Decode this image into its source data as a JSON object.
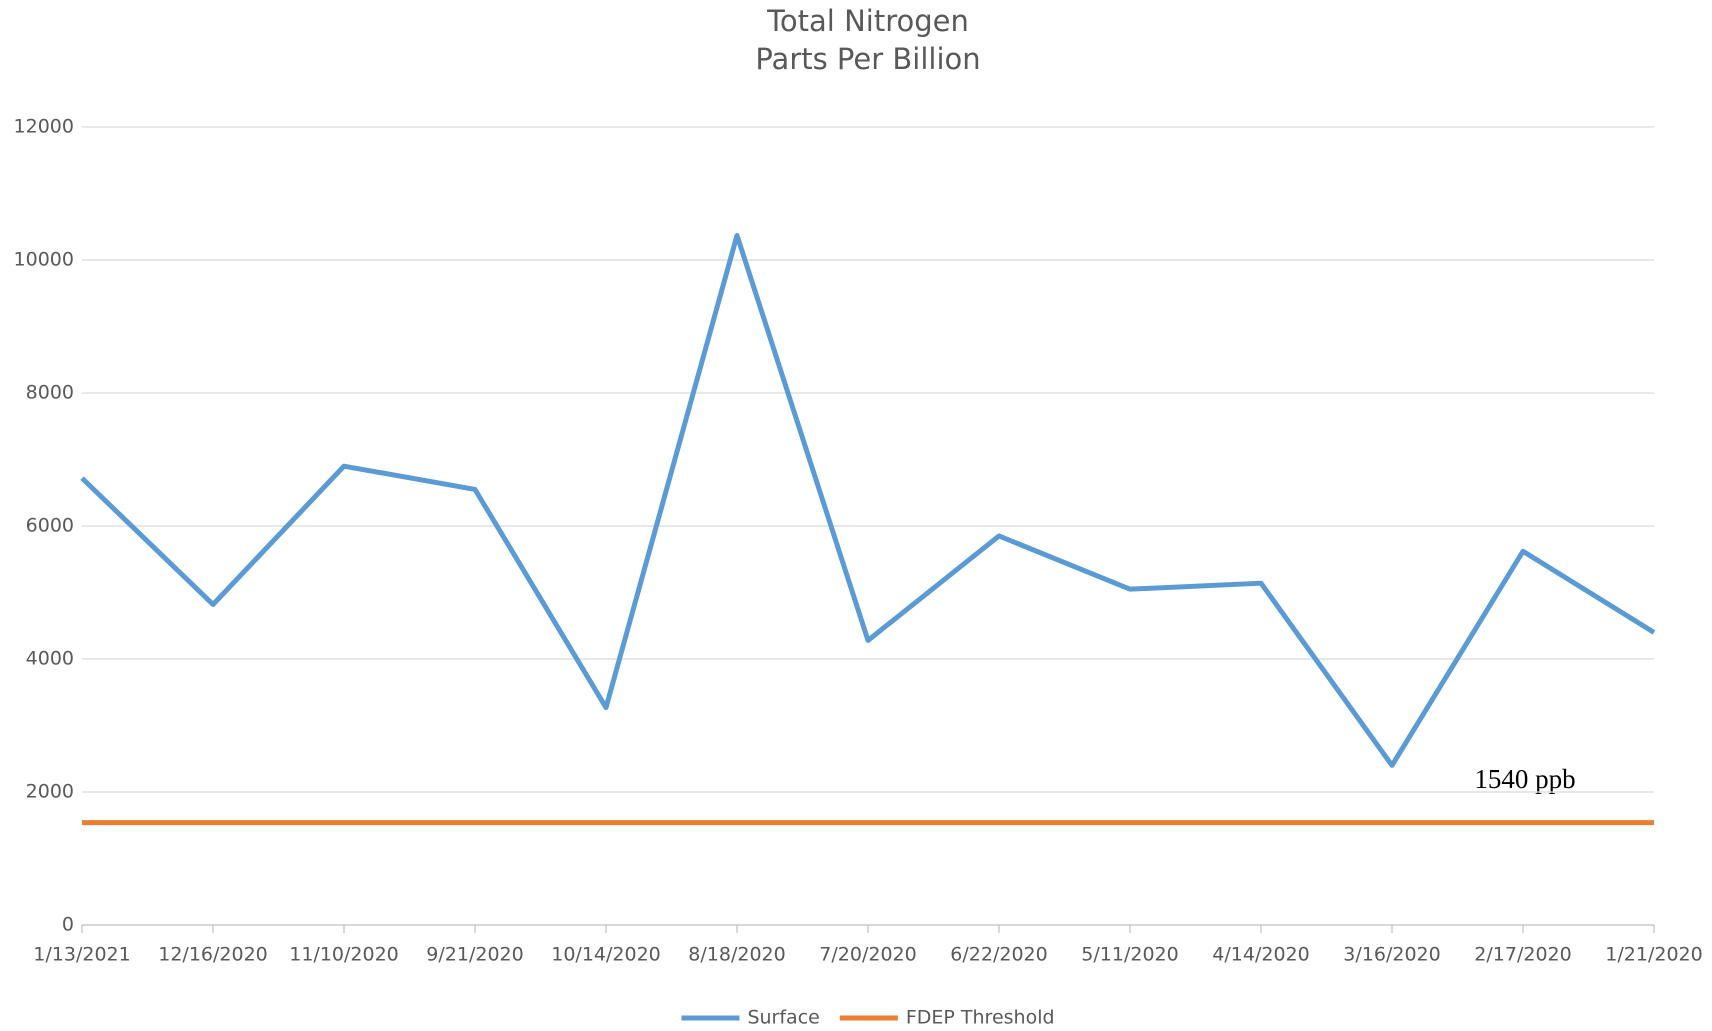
{
  "chart_data": {
    "type": "line",
    "title": "Total Nitrogen",
    "subtitle": "Parts Per Billion",
    "categories": [
      "1/13/2021",
      "12/16/2020",
      "11/10/2020",
      "9/21/2020",
      "10/14/2020",
      "8/18/2020",
      "7/20/2020",
      "6/22/2020",
      "5/11/2020",
      "4/14/2020",
      "3/16/2020",
      "2/17/2020",
      "1/21/2020"
    ],
    "series": [
      {
        "name": "Surface",
        "color": "#5b9bd5",
        "values": [
          6720,
          4820,
          6900,
          6550,
          3270,
          10370,
          4280,
          5850,
          5050,
          5140,
          2400,
          5620,
          4400
        ]
      },
      {
        "name": "FDEP Threshold",
        "color": "#ed7d31",
        "values": [
          1540,
          1540,
          1540,
          1540,
          1540,
          1540,
          1540,
          1540,
          1540,
          1540,
          1540,
          1540,
          1540
        ]
      }
    ],
    "annotations": [
      "1540 ppb"
    ],
    "ylim": [
      0,
      12000
    ],
    "yticks": [
      0,
      2000,
      4000,
      6000,
      8000,
      10000,
      12000
    ],
    "grid": true,
    "legend": "bottom"
  }
}
